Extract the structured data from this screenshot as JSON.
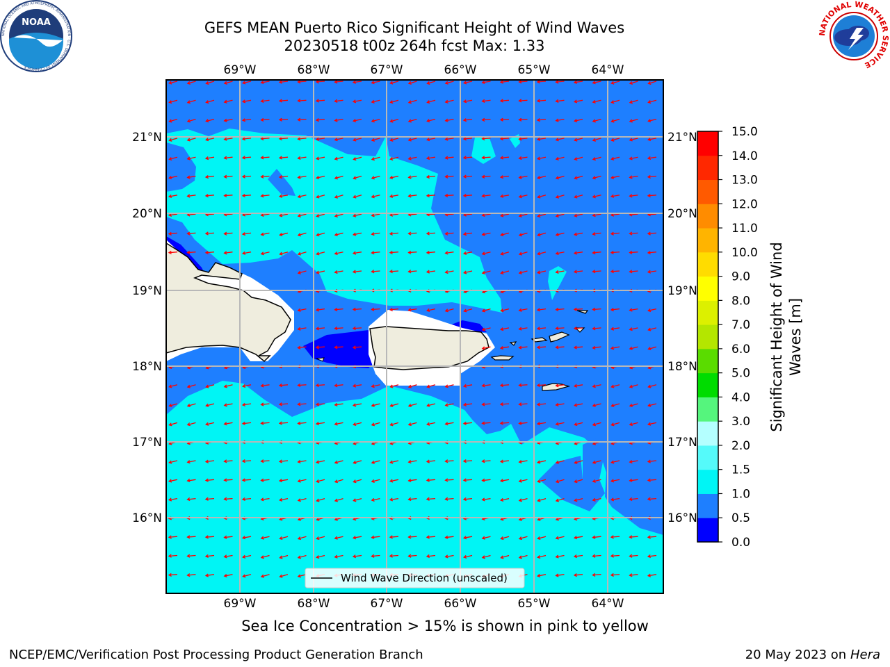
{
  "title_line1": "GEFS MEAN Puerto Rico Significant Height of Wind Waves",
  "title_line2": "20230518 t00z 264h fcst   Max: 1.33",
  "lon_labels": [
    "69°W",
    "68°W",
    "67°W",
    "66°W",
    "65°W",
    "64°W"
  ],
  "lat_labels": [
    "21°N",
    "20°N",
    "19°N",
    "18°N",
    "17°N",
    "16°N"
  ],
  "legend": {
    "label": "Wind Wave Direction (unscaled)"
  },
  "colorbar": {
    "label_line1": "Significant Height of Wind",
    "label_line2": "Waves [m]",
    "ticks": [
      "0.0",
      "0.5",
      "1.0",
      "1.5",
      "2.0",
      "3.0",
      "4.0",
      "5.0",
      "6.0",
      "7.0",
      "8.0",
      "9.0",
      "10.0",
      "11.0",
      "12.0",
      "13.0",
      "14.0",
      "15.0"
    ],
    "colors": [
      "#0000ff",
      "#1e7fff",
      "#00f5f5",
      "#55fafa",
      "#b4ffff",
      "#55f57d",
      "#00dc00",
      "#5adc00",
      "#b4e600",
      "#dcf000",
      "#ffff00",
      "#ffdc00",
      "#ffb400",
      "#ff8c00",
      "#ff5a00",
      "#ff2800",
      "#ff0000"
    ]
  },
  "chart_data": {
    "type": "heatmap",
    "title": "GEFS MEAN Puerto Rico Significant Height of Wind Waves",
    "subtitle": "20230518 t00z 264h fcst   Max: 1.33",
    "variable": "Significant Height of Wind Waves [m]",
    "max_value": 1.33,
    "lon_range": [
      -70,
      -63.3
    ],
    "lat_range": [
      15,
      21.8
    ],
    "overlay": "Wind Wave Direction (unscaled)",
    "wind_direction": "from east-northeast, toward west-southwest",
    "gridlines": true
  },
  "subtitle": "Sea Ice Concentration > 15% is shown in pink to yellow",
  "footer_left": "NCEP/EMC/Verification Post Processing Product Generation Branch",
  "footer_right_date": "20 May 2023 on",
  "footer_right_host": "Hera",
  "logos": {
    "noaa": {
      "text": "NOAA",
      "ring": "NATIONAL OCEANIC AND ATMOSPHERIC ADMINISTRATION · U.S. DEPARTMENT OF COMMERCE"
    },
    "nws": {
      "ring": "NATIONAL WEATHER SERVICE"
    }
  },
  "colors": {
    "arrow": "#ff0000",
    "land": "#efedde",
    "grid": "#b8b8b8"
  }
}
